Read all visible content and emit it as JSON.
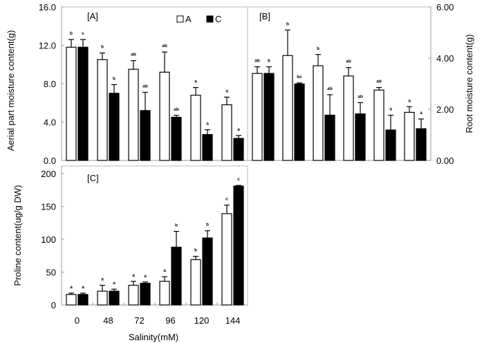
{
  "chart_data": [
    {
      "type": "bar",
      "panel_label": "[A]",
      "ylabel": "Aerial part moisture content(g)",
      "ylim": [
        0,
        16
      ],
      "yticks": [
        "0.0",
        "4.0",
        "8.0",
        "12.0",
        "16.0"
      ],
      "yaxis_side": "left",
      "categories": [
        "0",
        "48",
        "72",
        "96",
        "120",
        "144"
      ],
      "legend": {
        "placement": "top-right",
        "entries": [
          "A",
          "C"
        ]
      },
      "series": [
        {
          "name": "A",
          "color": "#ffffff",
          "values": [
            11.8,
            10.5,
            9.5,
            9.2,
            6.8,
            5.8
          ],
          "error_top": [
            12.6,
            11.2,
            10.4,
            11.3,
            7.6,
            6.6
          ],
          "letters": [
            "b",
            "b",
            "ab",
            "ab",
            "a",
            "a"
          ]
        },
        {
          "name": "C",
          "color": "#000000",
          "values": [
            11.8,
            7.0,
            5.2,
            4.5,
            2.7,
            2.3
          ],
          "error_top": [
            12.6,
            7.9,
            7.1,
            4.7,
            3.2,
            2.6
          ],
          "letters": [
            "c",
            "b",
            "ab",
            "ab",
            "a",
            "a"
          ]
        }
      ]
    },
    {
      "type": "bar",
      "panel_label": "[B]",
      "ylabel": "Root moisture content(g)",
      "ylim": [
        0,
        6
      ],
      "yticks": [
        "0.00",
        "2.00",
        "4.00",
        "6.00"
      ],
      "yaxis_side": "right",
      "categories": [
        "0",
        "48",
        "72",
        "96",
        "120",
        "144"
      ],
      "series": [
        {
          "name": "A",
          "color": "#ffffff",
          "values": [
            3.4,
            4.1,
            3.7,
            3.3,
            2.75,
            1.88
          ],
          "error_top": [
            3.66,
            5.1,
            4.14,
            3.63,
            2.85,
            2.1
          ],
          "letters": [
            "ab",
            "b",
            "b",
            "ab",
            "ab",
            "a"
          ]
        },
        {
          "name": "C",
          "color": "#000000",
          "values": [
            3.4,
            2.99,
            1.77,
            1.82,
            1.19,
            1.24
          ],
          "error_top": [
            3.66,
            3.03,
            2.57,
            2.26,
            1.77,
            1.62
          ],
          "letters": [
            "b",
            "bc",
            "ab",
            "ab",
            "a",
            "a"
          ]
        }
      ]
    },
    {
      "type": "bar",
      "panel_label": "[C]",
      "ylabel": "Proline content(ug/g DW)",
      "xlabel": "Salinity(mM)",
      "ylim": [
        0,
        200
      ],
      "yticks": [
        "0",
        "50",
        "100",
        "150",
        "200"
      ],
      "yaxis_side": "left",
      "categories": [
        "0",
        "48",
        "72",
        "96",
        "120",
        "144"
      ],
      "series": [
        {
          "name": "A",
          "color": "#ffffff",
          "values": [
            16,
            21,
            30,
            36,
            69,
            139
          ],
          "error_top": [
            18,
            30,
            36,
            43,
            74,
            152
          ],
          "letters": [
            "a",
            "a",
            "a",
            "a",
            "b",
            "c"
          ]
        },
        {
          "name": "C",
          "color": "#000000",
          "values": [
            16,
            21,
            33,
            88,
            102,
            181
          ],
          "error_top": [
            18,
            24,
            35,
            112,
            113,
            182
          ],
          "letters": [
            "a",
            "a",
            "a",
            "b",
            "b",
            "c"
          ]
        }
      ]
    }
  ]
}
